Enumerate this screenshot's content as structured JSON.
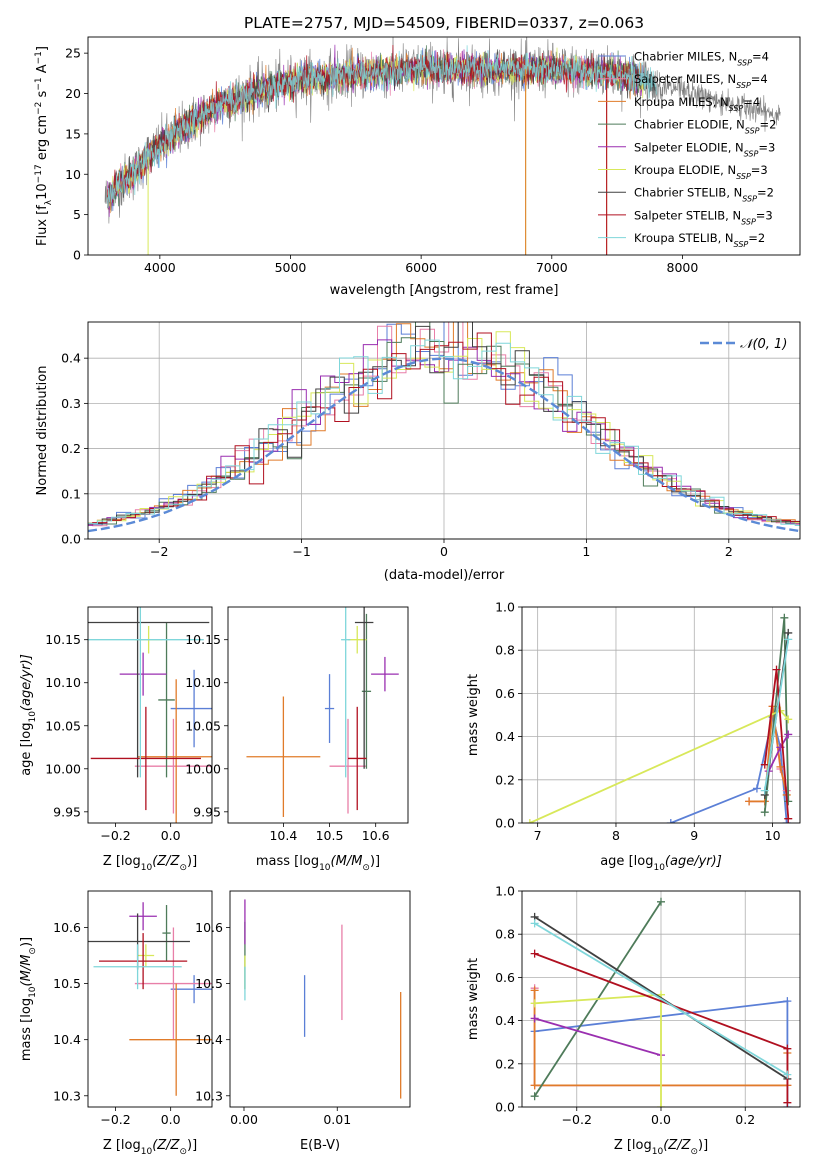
{
  "colors": {
    "chabrier_miles": "#5b7fd6",
    "salpeter_miles": "#e87fa8",
    "kroupa_miles": "#e07b2a",
    "chabrier_elodie": "#4e7b5a",
    "salpeter_elodie": "#9a2fb0",
    "kroupa_elodie": "#d8e85a",
    "chabrier_stelib": "#404040",
    "salpeter_stelib": "#b01020",
    "kroupa_stelib": "#7fd6da"
  },
  "chart_data": [
    {
      "id": "spectrum",
      "type": "line",
      "title": "PLATE=2757, MJD=54509, FIBERID=0337, z=0.063",
      "xlabel": "wavelength [Angstrom, rest frame]",
      "ylabel_pre": "Flux [f",
      "ylabel_lambda": "λ",
      "ylabel_mid": "10",
      "ylabel_exp1": "−17",
      "ylabel_post": " erg cm",
      "ylabel_exp2": "−2",
      "ylabel_post2": " s",
      "ylabel_exp3": "−1",
      "ylabel_post3": " A",
      "ylabel_exp4": "−1",
      "ylabel_end": "]",
      "xlim": [
        3450,
        8900
      ],
      "ylim": [
        0,
        27
      ],
      "xticks": [
        4000,
        5000,
        6000,
        7000,
        8000
      ],
      "yticks": [
        0,
        5,
        10,
        15,
        20,
        25
      ],
      "legend_position": "top-right",
      "series": [
        {
          "key": "chabrier_miles",
          "name": "Chabrier MILES, N",
          "sub": "SSP",
          "val": "=4"
        },
        {
          "key": "salpeter_miles",
          "name": "Salpeter MILES, N",
          "sub": "SSP",
          "val": "=4"
        },
        {
          "key": "kroupa_miles",
          "name": "Kroupa MILES, N",
          "sub": "SSP",
          "val": "=4"
        },
        {
          "key": "chabrier_elodie",
          "name": "Chabrier ELODIE, N",
          "sub": "SSP",
          "val": "=2"
        },
        {
          "key": "salpeter_elodie",
          "name": "Salpeter ELODIE, N",
          "sub": "SSP",
          "val": "=3"
        },
        {
          "key": "kroupa_elodie",
          "name": "Kroupa ELODIE, N",
          "sub": "SSP",
          "val": "=3"
        },
        {
          "key": "chabrier_stelib",
          "name": "Chabrier STELIB, N",
          "sub": "SSP",
          "val": "=2"
        },
        {
          "key": "salpeter_stelib",
          "name": "Salpeter STELIB, N",
          "sub": "SSP",
          "val": "=3"
        },
        {
          "key": "kroupa_stelib",
          "name": "Kroupa STELIB, N",
          "sub": "SSP",
          "val": "=2"
        }
      ],
      "continuum": [
        [
          3600,
          7
        ],
        [
          3700,
          9
        ],
        [
          3800,
          10
        ],
        [
          3900,
          12
        ],
        [
          4000,
          13.5
        ],
        [
          4200,
          16
        ],
        [
          4500,
          19
        ],
        [
          5000,
          21.5
        ],
        [
          5500,
          22.5
        ],
        [
          6000,
          23
        ],
        [
          6500,
          23
        ],
        [
          7000,
          23
        ],
        [
          7500,
          22.5
        ],
        [
          7800,
          21
        ]
      ],
      "data_range": [
        3580,
        8750
      ],
      "model_drops": [
        {
          "key": "kroupa_elodie",
          "x": 3910
        },
        {
          "key": "kroupa_elodie",
          "x": 6800
        },
        {
          "key": "kroupa_miles",
          "x": 6800
        },
        {
          "key": "kroupa_miles",
          "x": 7420
        },
        {
          "key": "salpeter_stelib",
          "x": 7420
        }
      ]
    },
    {
      "id": "residuals",
      "type": "histogram",
      "xlabel": "(data-model)/error",
      "ylabel": "Normed distribution",
      "xlim": [
        -2.5,
        2.5
      ],
      "ylim": [
        0,
        0.48
      ],
      "xticks": [
        -2,
        -1,
        0,
        1,
        2
      ],
      "yticks": [
        0.0,
        0.1,
        0.2,
        0.3,
        0.4
      ],
      "grid": true,
      "legend_position": "top-right",
      "legend_label": "𝒩(0, 1)",
      "reference_curve": {
        "mean": 0,
        "sigma": 1,
        "color": "#5b8ad6"
      },
      "bin_width": 0.1
    },
    {
      "id": "age_vs_Z",
      "type": "errorbar",
      "xlabel": "Z [log",
      "xlabel_sub": "10",
      "xlabel_rest": "(Z/Z",
      "xlabel_sun": "⊙",
      "xlabel_end": ")]",
      "ylabel": "age  [log",
      "ylabel_sub": "10",
      "ylabel_rest": "(age/yr)]",
      "xlim": [
        -0.3,
        0.15
      ],
      "ylim": [
        9.937,
        10.188
      ],
      "xticks": [
        -0.2,
        0.0
      ],
      "yticks": [
        9.95,
        10.0,
        10.05,
        10.1,
        10.15
      ],
      "points": [
        {
          "key": "chabrier_miles",
          "x": 0.085,
          "y": 10.07,
          "xerr": 0.085,
          "yerr": 0.045
        },
        {
          "key": "salpeter_miles",
          "x": 0.01,
          "y": 10.003,
          "xerr": 0.14,
          "yerr": 0.055
        },
        {
          "key": "kroupa_miles",
          "x": 0.02,
          "y": 10.014,
          "xerr": 0.14,
          "yerr": 0.09
        },
        {
          "key": "chabrier_elodie",
          "x": -0.015,
          "y": 10.08,
          "xerr": 0.03,
          "yerr": 0.09
        },
        {
          "key": "salpeter_elodie",
          "x": -0.1,
          "y": 10.11,
          "xerr": 0.085,
          "yerr": 0.025
        },
        {
          "key": "kroupa_elodie",
          "x": -0.08,
          "y": 10.15,
          "xerr": 0.05,
          "yerr": 0.016
        },
        {
          "key": "chabrier_stelib",
          "x": -0.12,
          "y": 10.17,
          "xerr": 0.26,
          "yerr": 0.18
        },
        {
          "key": "salpeter_stelib",
          "x": -0.09,
          "y": 10.012,
          "xerr": 0.2,
          "yerr": 0.06
        },
        {
          "key": "kroupa_stelib",
          "x": -0.11,
          "y": 10.15,
          "xerr": 0.23,
          "yerr": 0.16
        }
      ]
    },
    {
      "id": "age_vs_mass",
      "type": "errorbar",
      "xlabel": "mass [log",
      "xlabel_sub": "10",
      "xlabel_rest": "(M/M",
      "xlabel_sun": "⊙",
      "xlabel_end": ")]",
      "xlim": [
        10.28,
        10.67
      ],
      "ylim": [
        9.937,
        10.188
      ],
      "xticks": [
        10.4,
        10.5,
        10.6
      ],
      "yticks": [
        9.95,
        10.0,
        10.05,
        10.1,
        10.15
      ],
      "points": [
        {
          "key": "chabrier_miles",
          "x": 10.5,
          "y": 10.07,
          "xerr": 0.01,
          "yerr": 0.04
        },
        {
          "key": "salpeter_miles",
          "x": 10.54,
          "y": 10.003,
          "xerr": 0.04,
          "yerr": 0.055
        },
        {
          "key": "kroupa_miles",
          "x": 10.4,
          "y": 10.014,
          "xerr": 0.08,
          "yerr": 0.07
        },
        {
          "key": "chabrier_elodie",
          "x": 10.58,
          "y": 10.09,
          "xerr": 0.01,
          "yerr": 0.09
        },
        {
          "key": "salpeter_elodie",
          "x": 10.62,
          "y": 10.11,
          "xerr": 0.03,
          "yerr": 0.02
        },
        {
          "key": "kroupa_elodie",
          "x": 10.56,
          "y": 10.15,
          "xerr": 0.02,
          "yerr": 0.016
        },
        {
          "key": "chabrier_stelib",
          "x": 10.575,
          "y": 10.17,
          "xerr": 0.02,
          "yerr": 0.17
        },
        {
          "key": "salpeter_stelib",
          "x": 10.56,
          "y": 10.012,
          "xerr": 0.02,
          "yerr": 0.06
        },
        {
          "key": "kroupa_stelib",
          "x": 10.535,
          "y": 10.15,
          "xerr": 0.01,
          "yerr": 0.16
        }
      ]
    },
    {
      "id": "massweight_vs_age",
      "type": "line",
      "xlabel": "age  [log",
      "xlabel_sub": "10",
      "xlabel_rest": "(age/yr)]",
      "ylabel": "mass weight",
      "xlim": [
        6.8,
        10.35
      ],
      "ylim": [
        0,
        1.0
      ],
      "xticks": [
        7,
        8,
        9,
        10
      ],
      "yticks": [
        0.0,
        0.2,
        0.4,
        0.6,
        0.8,
        1.0
      ],
      "grid": true,
      "series": [
        {
          "key": "chabrier_miles",
          "x": [
            8.7,
            9.8,
            10.0,
            10.1,
            10.18
          ],
          "y": [
            0.0,
            0.16,
            0.49,
            0.35,
            0.0
          ]
        },
        {
          "key": "salpeter_miles",
          "x": [
            9.7,
            9.9,
            10.0,
            10.1,
            10.18
          ],
          "y": [
            0.1,
            0.1,
            0.54,
            0.25,
            0.15
          ]
        },
        {
          "key": "kroupa_miles",
          "x": [
            9.7,
            9.9,
            10.0,
            10.1,
            10.18
          ],
          "y": [
            0.1,
            0.1,
            0.54,
            0.26,
            0.13
          ]
        },
        {
          "key": "chabrier_elodie",
          "x": [
            9.9,
            10.15,
            10.2
          ],
          "y": [
            0.05,
            0.95,
            0.1
          ]
        },
        {
          "key": "salpeter_elodie",
          "x": [
            9.95,
            10.1,
            10.2
          ],
          "y": [
            0.24,
            0.35,
            0.41
          ]
        },
        {
          "key": "kroupa_elodie",
          "x": [
            6.9,
            10.1,
            10.2
          ],
          "y": [
            0.0,
            0.52,
            0.48
          ]
        },
        {
          "key": "chabrier_stelib",
          "x": [
            9.9,
            10.2
          ],
          "y": [
            0.13,
            0.88
          ]
        },
        {
          "key": "salpeter_stelib",
          "x": [
            9.9,
            10.05,
            10.2
          ],
          "y": [
            0.27,
            0.71,
            0.02
          ]
        },
        {
          "key": "kroupa_stelib",
          "x": [
            9.9,
            10.2
          ],
          "y": [
            0.15,
            0.85
          ]
        }
      ]
    },
    {
      "id": "mass_vs_Z",
      "type": "errorbar",
      "xlabel": "Z [log",
      "xlabel_sub": "10",
      "xlabel_rest": "(Z/Z",
      "xlabel_sun": "⊙",
      "xlabel_end": ")]",
      "ylabel": "mass [log",
      "ylabel_sub": "10",
      "ylabel_rest": "(M/M",
      "ylabel_sun": "⊙",
      "ylabel_end": ")]",
      "xlim": [
        -0.3,
        0.15
      ],
      "ylim": [
        10.28,
        10.665
      ],
      "xticks": [
        -0.2,
        0.0
      ],
      "yticks": [
        10.3,
        10.4,
        10.5,
        10.6
      ],
      "points": [
        {
          "key": "chabrier_miles",
          "x": 0.085,
          "y": 10.49,
          "xerr": 0.085,
          "yerr": 0.025
        },
        {
          "key": "salpeter_miles",
          "x": 0.01,
          "y": 10.5,
          "xerr": 0.14,
          "yerr": 0.1
        },
        {
          "key": "kroupa_miles",
          "x": 0.02,
          "y": 10.4,
          "xerr": 0.17,
          "yerr": 0.1
        },
        {
          "key": "chabrier_elodie",
          "x": -0.015,
          "y": 10.59,
          "xerr": 0.015,
          "yerr": 0.05
        },
        {
          "key": "salpeter_elodie",
          "x": -0.1,
          "y": 10.62,
          "xerr": 0.05,
          "yerr": 0.025
        },
        {
          "key": "kroupa_elodie",
          "x": -0.09,
          "y": 10.55,
          "xerr": 0.03,
          "yerr": 0.02
        },
        {
          "key": "chabrier_stelib",
          "x": -0.12,
          "y": 10.575,
          "xerr": 0.19,
          "yerr": 0.05
        },
        {
          "key": "salpeter_stelib",
          "x": -0.1,
          "y": 10.54,
          "xerr": 0.16,
          "yerr": 0.05
        },
        {
          "key": "kroupa_stelib",
          "x": -0.12,
          "y": 10.53,
          "xerr": 0.16,
          "yerr": 0.04
        }
      ]
    },
    {
      "id": "mass_vs_ebv",
      "type": "errorbar",
      "xlabel": "E(B-V)",
      "xlim": [
        -0.0015,
        0.0178
      ],
      "ylim": [
        10.28,
        10.665
      ],
      "xticks": [
        0.0,
        0.01
      ],
      "xtick_labels": [
        "0.00",
        "0.01"
      ],
      "yticks": [
        10.3,
        10.4,
        10.5,
        10.6
      ],
      "points": [
        {
          "key": "chabrier_miles",
          "x": 0.0065,
          "y": 10.46,
          "xerr": 0,
          "yerr": 0.055
        },
        {
          "key": "salpeter_miles",
          "x": 0.0105,
          "y": 10.52,
          "xerr": 0,
          "yerr": 0.085
        },
        {
          "key": "kroupa_miles",
          "x": 0.0168,
          "y": 10.39,
          "xerr": 0,
          "yerr": 0.095
        },
        {
          "key": "chabrier_elodie",
          "x": 0.0001,
          "y": 10.55,
          "xerr": 0,
          "yerr": 0.06
        },
        {
          "key": "salpeter_elodie",
          "x": 0.0001,
          "y": 10.61,
          "xerr": 0,
          "yerr": 0.04
        },
        {
          "key": "kroupa_elodie",
          "x": 0.0001,
          "y": 10.52,
          "xerr": 0,
          "yerr": 0.03
        },
        {
          "key": "kroupa_stelib",
          "x": 0.0001,
          "y": 10.5,
          "xerr": 0,
          "yerr": 0.03
        }
      ]
    },
    {
      "id": "massweight_vs_Z",
      "type": "line",
      "xlabel": "Z [log",
      "xlabel_sub": "10",
      "xlabel_rest": "(Z/Z",
      "xlabel_sun": "⊙",
      "xlabel_end": ")]",
      "ylabel": "mass weight",
      "xlim": [
        -0.33,
        0.33
      ],
      "ylim": [
        0,
        1.0
      ],
      "xticks": [
        -0.2,
        0.0,
        0.2
      ],
      "yticks": [
        0.0,
        0.2,
        0.4,
        0.6,
        0.8,
        1.0
      ],
      "grid": true,
      "series": [
        {
          "key": "chabrier_miles",
          "x": [
            -0.3,
            0.3,
            0.3
          ],
          "y": [
            0.35,
            0.49,
            0.0
          ]
        },
        {
          "key": "salpeter_miles",
          "x": [
            -0.3,
            -0.3,
            0.3
          ],
          "y": [
            0.55,
            0.1,
            0.1
          ]
        },
        {
          "key": "kroupa_miles",
          "x": [
            -0.3,
            -0.3,
            0.3,
            0.3
          ],
          "y": [
            0.54,
            0.1,
            0.1,
            0.25
          ]
        },
        {
          "key": "chabrier_elodie",
          "x": [
            -0.3,
            0.0
          ],
          "y": [
            0.05,
            0.95
          ]
        },
        {
          "key": "salpeter_elodie",
          "x": [
            -0.3,
            0.0
          ],
          "y": [
            0.41,
            0.24
          ]
        },
        {
          "key": "kroupa_elodie",
          "x": [
            -0.3,
            0.0,
            0.0
          ],
          "y": [
            0.48,
            0.52,
            0.0
          ]
        },
        {
          "key": "chabrier_stelib",
          "x": [
            -0.3,
            0.3
          ],
          "y": [
            0.88,
            0.13
          ]
        },
        {
          "key": "salpeter_stelib",
          "x": [
            -0.3,
            0.3,
            0.3
          ],
          "y": [
            0.71,
            0.27,
            0.02
          ]
        },
        {
          "key": "kroupa_stelib",
          "x": [
            -0.3,
            0.3
          ],
          "y": [
            0.85,
            0.15
          ]
        }
      ]
    }
  ]
}
